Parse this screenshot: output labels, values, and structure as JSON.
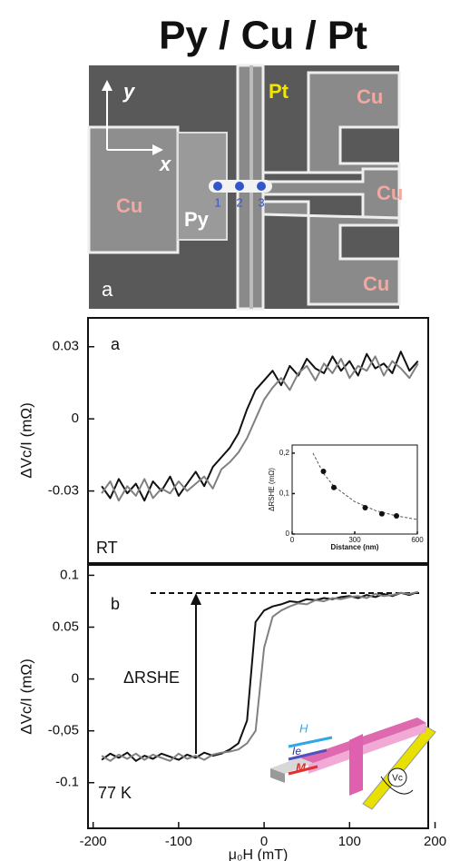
{
  "title": "Py / Cu / Pt",
  "micrograph": {
    "panel": "a",
    "axis_y": "y",
    "axis_x": "x",
    "pt": "Pt",
    "cu_left": "Cu",
    "cu_top": "Cu",
    "cu_middle": "Cu",
    "cu_bottom": "Cu",
    "py": "Py",
    "points": [
      "1",
      "2",
      "3"
    ]
  },
  "chart_data": [
    {
      "type": "line",
      "ylabel": "ΔVc/I (mΩ)",
      "annotations": [
        "a",
        "RT"
      ],
      "xlim": [
        -206,
        192
      ],
      "ylim": [
        -0.06,
        0.042
      ],
      "yticks": [
        0.03,
        0,
        -0.03
      ],
      "x": [
        -190,
        -180,
        -170,
        -160,
        -150,
        -140,
        -130,
        -120,
        -110,
        -100,
        -90,
        -80,
        -70,
        -60,
        -50,
        -40,
        -30,
        -20,
        -10,
        0,
        10,
        20,
        30,
        40,
        50,
        60,
        70,
        80,
        90,
        100,
        110,
        120,
        130,
        140,
        150,
        160,
        170,
        180
      ],
      "series": [
        {
          "color": "#111111",
          "values": [
            -0.028,
            -0.033,
            -0.025,
            -0.031,
            -0.027,
            -0.034,
            -0.026,
            -0.03,
            -0.024,
            -0.032,
            -0.027,
            -0.022,
            -0.028,
            -0.02,
            -0.016,
            -0.012,
            -0.006,
            0.004,
            0.012,
            0.016,
            0.02,
            0.014,
            0.022,
            0.018,
            0.025,
            0.021,
            0.019,
            0.026,
            0.02,
            0.024,
            0.018,
            0.027,
            0.021,
            0.023,
            0.019,
            0.028,
            0.02,
            0.024
          ]
        },
        {
          "color": "#808080",
          "values": [
            -0.031,
            -0.026,
            -0.034,
            -0.028,
            -0.032,
            -0.025,
            -0.033,
            -0.029,
            -0.031,
            -0.026,
            -0.03,
            -0.027,
            -0.024,
            -0.029,
            -0.021,
            -0.018,
            -0.014,
            -0.008,
            0.0,
            0.008,
            0.013,
            0.017,
            0.012,
            0.019,
            0.022,
            0.016,
            0.023,
            0.019,
            0.025,
            0.017,
            0.022,
            0.02,
            0.026,
            0.018,
            0.024,
            0.021,
            0.017,
            0.023
          ]
        }
      ]
    },
    {
      "type": "line",
      "ylabel": "ΔVc/I (mΩ)",
      "xlabel": "μ₀H (mT)",
      "annotations": [
        "b",
        "77 K",
        "ΔRSHE"
      ],
      "xlim": [
        -206,
        192
      ],
      "xticks": [
        -200,
        -100,
        0,
        100,
        200
      ],
      "ylim": [
        -0.144,
        0.11
      ],
      "yticks": [
        0.1,
        0.05,
        0,
        {
          "value": -0.05,
          "label": "-0,05"
        },
        -0.1
      ],
      "x": [
        -190,
        -180,
        -170,
        -160,
        -150,
        -140,
        -130,
        -120,
        -110,
        -100,
        -90,
        -80,
        -70,
        -60,
        -50,
        -40,
        -30,
        -20,
        -10,
        0,
        10,
        20,
        30,
        40,
        50,
        60,
        70,
        80,
        90,
        100,
        110,
        120,
        130,
        140,
        150,
        160,
        170,
        180
      ],
      "series": [
        {
          "color": "#111111",
          "values": [
            -0.078,
            -0.072,
            -0.076,
            -0.071,
            -0.079,
            -0.074,
            -0.077,
            -0.072,
            -0.075,
            -0.078,
            -0.073,
            -0.076,
            -0.071,
            -0.074,
            -0.072,
            -0.068,
            -0.062,
            -0.04,
            0.055,
            0.066,
            0.07,
            0.072,
            0.075,
            0.074,
            0.077,
            0.076,
            0.078,
            0.077,
            0.079,
            0.08,
            0.078,
            0.081,
            0.079,
            0.082,
            0.08,
            0.083,
            0.081,
            0.084
          ]
        },
        {
          "color": "#808080",
          "values": [
            -0.074,
            -0.079,
            -0.073,
            -0.077,
            -0.072,
            -0.078,
            -0.073,
            -0.076,
            -0.079,
            -0.072,
            -0.077,
            -0.074,
            -0.078,
            -0.073,
            -0.071,
            -0.07,
            -0.068,
            -0.062,
            -0.05,
            0.03,
            0.06,
            0.066,
            0.07,
            0.073,
            0.072,
            0.076,
            0.075,
            0.078,
            0.077,
            0.079,
            0.08,
            0.078,
            0.082,
            0.08,
            0.081,
            0.083,
            0.082,
            0.084
          ]
        }
      ],
      "schematic": [
        "H",
        "Ie",
        "M",
        "Vc"
      ]
    },
    {
      "type": "scatter",
      "ylabel": "ΔRSHE (mΩ)",
      "xlabel": "Distance (nm)",
      "xlim": [
        0,
        600
      ],
      "xticks": [
        0,
        300,
        600
      ],
      "ylim": [
        0,
        0.22
      ],
      "yticks": [
        0,
        {
          "value": 0.1,
          "label": "0,1"
        },
        {
          "value": 0.2,
          "label": "0,2"
        }
      ],
      "x": [
        150,
        200,
        350,
        430,
        500
      ],
      "values": [
        0.155,
        0.115,
        0.065,
        0.05,
        0.045
      ],
      "color": "#111111",
      "fit": {
        "x": [
          100,
          150,
          200,
          300,
          400,
          500,
          600
        ],
        "values": [
          0.2,
          0.15,
          0.118,
          0.08,
          0.058,
          0.045,
          0.036
        ]
      }
    }
  ]
}
